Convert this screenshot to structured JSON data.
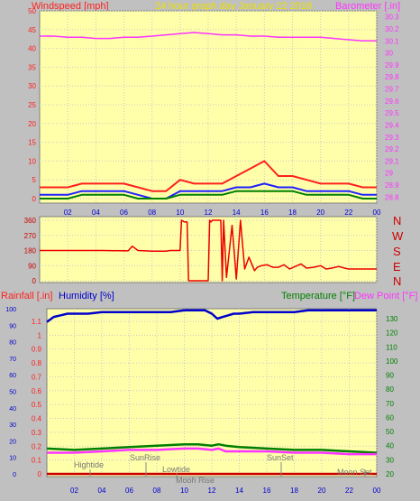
{
  "header": {
    "windspeed_label": "Windspeed [mph]",
    "title": "24 hour graph day   January 22 2018",
    "barometer_label": "Barometer [.in]"
  },
  "direction_letters": [
    "N",
    "W",
    "S",
    "E",
    "N"
  ],
  "bottom_header": {
    "rainfall_label": "Rainfall [.in]",
    "humidity_label": "Humidity [%]",
    "temperature_label": "Temperature [°F]",
    "dewpoint_label": "Dew Point [°F]"
  },
  "events": {
    "hightide": "Hightide",
    "sunrise": "SunRise",
    "lowtide": "Lowtide",
    "moonrise": "Moon Rise",
    "sunset": "SunSet",
    "moonset": "Moon Set"
  },
  "colors": {
    "plot_bg": "#ffffaa",
    "panel_bg": "#c0c0c0",
    "wind_gust": "#ff2020",
    "wind_avg": "#2020ff",
    "wind_min": "#008000",
    "barometer": "#ff33ff",
    "direction": "#ee0000",
    "humidity": "#0000cc",
    "temperature": "#008000",
    "dewpoint": "#ff33ff",
    "rainfall": "#cc0000",
    "grid": "#c8c8c8"
  },
  "chart_data": [
    {
      "type": "line",
      "title": "24 hour graph day   January 22 2018",
      "x_ticks": [
        "02",
        "04",
        "06",
        "08",
        "10",
        "12",
        "14",
        "16",
        "18",
        "20",
        "22",
        "00"
      ],
      "xlim": [
        0,
        24
      ],
      "y_left": {
        "label": "Windspeed [mph]",
        "ticks": [
          0,
          5,
          10,
          15,
          20,
          25,
          30,
          35,
          40,
          45,
          50
        ],
        "ylim": [
          0,
          50
        ]
      },
      "y_right": {
        "label": "Barometer [.in]",
        "ticks": [
          28.8,
          28.9,
          29.0,
          29.1,
          29.2,
          29.3,
          29.4,
          29.5,
          29.6,
          29.7,
          29.8,
          29.9,
          30.0,
          30.1,
          30.2,
          30.3
        ],
        "tick_labels": [
          "28.8",
          "28.9",
          "29",
          "29.1",
          "29.2",
          "29.3",
          "29.4",
          "29.5",
          "29.6",
          "29.7",
          "29.8",
          "29.9",
          "30",
          "30.1",
          "30.2",
          "30.3"
        ],
        "ylim": [
          28.75,
          30.35
        ]
      },
      "series": [
        {
          "axis": "right",
          "x": [
            0,
            1,
            2,
            3,
            4,
            5,
            6,
            7,
            8,
            9,
            10,
            11,
            12,
            13,
            14,
            15,
            16,
            17,
            18,
            19,
            20,
            21,
            22,
            23,
            24
          ],
          "y": [
            30.14,
            30.14,
            30.13,
            30.13,
            30.12,
            30.12,
            30.13,
            30.13,
            30.14,
            30.15,
            30.16,
            30.17,
            30.16,
            30.15,
            30.15,
            30.14,
            30.14,
            30.13,
            30.13,
            30.13,
            30.13,
            30.12,
            30.11,
            30.1,
            30.1
          ]
        },
        {
          "axis": "left",
          "x": [
            0,
            1,
            2,
            3,
            4,
            5,
            6,
            7,
            8,
            9,
            10,
            11,
            12,
            13,
            14,
            15,
            16,
            17,
            18,
            19,
            20,
            21,
            22,
            23,
            24
          ],
          "y": [
            3,
            3,
            3,
            4,
            4,
            4,
            4,
            3,
            2,
            2,
            5,
            4,
            4,
            4,
            6,
            8,
            10,
            6,
            6,
            5,
            4,
            4,
            4,
            3,
            3
          ]
        },
        {
          "axis": "left",
          "x": [
            0,
            1,
            2,
            3,
            4,
            5,
            6,
            7,
            8,
            9,
            10,
            11,
            12,
            13,
            14,
            15,
            16,
            17,
            18,
            19,
            20,
            21,
            22,
            23,
            24
          ],
          "y": [
            1,
            1,
            1,
            2,
            2,
            2,
            2,
            1,
            0,
            0,
            2,
            2,
            2,
            2,
            3,
            3,
            4,
            3,
            3,
            2,
            2,
            2,
            2,
            1,
            1
          ]
        },
        {
          "axis": "left",
          "x": [
            0,
            1,
            2,
            3,
            4,
            5,
            6,
            7,
            8,
            9,
            10,
            11,
            12,
            13,
            14,
            15,
            16,
            17,
            18,
            19,
            20,
            21,
            22,
            23,
            24
          ],
          "y": [
            0,
            0,
            0,
            1,
            1,
            1,
            1,
            0,
            0,
            0,
            1,
            1,
            1,
            1,
            2,
            2,
            2,
            2,
            2,
            1,
            1,
            1,
            1,
            0,
            0
          ]
        }
      ]
    },
    {
      "type": "line",
      "y_ticks": [
        0,
        90,
        180,
        270,
        360
      ],
      "ylim": [
        0,
        360
      ],
      "xlim": [
        0,
        24
      ],
      "series": [
        {
          "x": [
            0,
            4.5,
            6.3,
            6.6,
            7,
            7.5,
            8,
            9,
            9.3,
            9.6,
            10,
            10.1,
            10.3,
            10.5,
            10.6,
            11,
            11.7,
            12,
            12.1,
            12.2,
            12.3,
            12.9,
            13,
            13.1,
            13.3,
            13.7,
            14,
            14.3,
            14.6,
            14.9,
            15.3,
            15.5,
            15.8,
            16.2,
            16.6,
            17,
            17.4,
            17.8,
            18.2,
            18.6,
            19,
            19.5,
            20,
            20.4,
            20.8,
            21.3,
            21.7,
            22,
            22.5,
            23,
            24
          ],
          "y": [
            180,
            180,
            178,
            205,
            180,
            178,
            176,
            176,
            180,
            180,
            180,
            360,
            350,
            350,
            0,
            0,
            0,
            0,
            360,
            350,
            360,
            360,
            0,
            360,
            20,
            330,
            10,
            360,
            70,
            140,
            60,
            80,
            90,
            95,
            80,
            80,
            95,
            70,
            85,
            100,
            75,
            80,
            90,
            70,
            75,
            85,
            75,
            70,
            70,
            70,
            70
          ]
        }
      ]
    },
    {
      "type": "line",
      "xlim": [
        0,
        24
      ],
      "x_ticks": [
        "02",
        "04",
        "06",
        "08",
        "10",
        "12",
        "14",
        "16",
        "18",
        "20",
        "22",
        "00"
      ],
      "y_left_outer": {
        "label": "Rainfall [.in]",
        "ticks": [
          0,
          10,
          20,
          30,
          40,
          50,
          60,
          70,
          80,
          90,
          100
        ]
      },
      "y_left_inner": {
        "label": "Humidity [%]",
        "ticks": [
          0,
          0.1,
          0.2,
          0.3,
          0.4,
          0.5,
          0.6,
          0.7,
          0.8,
          0.9,
          1.0,
          1.1
        ],
        "tick_labels": [
          "0",
          "0.1",
          "0.2",
          "0.3",
          "0.4",
          "0.5",
          "0.6",
          "0.7",
          "0.8",
          "0.9",
          "1",
          "1.1"
        ]
      },
      "y_right": {
        "label": "Temperature [°F]",
        "ticks": [
          20,
          30,
          40,
          50,
          60,
          70,
          80,
          90,
          100,
          110,
          120,
          130
        ]
      },
      "series": [
        {
          "name": "Humidity [%]",
          "x": [
            0,
            0.5,
            1,
            1.5,
            2,
            3,
            4,
            5,
            6,
            7,
            8,
            9,
            10,
            11,
            11.5,
            12,
            12.4,
            12.8,
            13.2,
            13.6,
            14,
            15,
            16,
            17,
            18,
            19,
            20,
            21,
            22,
            23,
            24
          ],
          "y": [
            92,
            95,
            96,
            97,
            97,
            97,
            98,
            98,
            98,
            98,
            98,
            98,
            99,
            99,
            99,
            97,
            94,
            95,
            96,
            97,
            97,
            98,
            98,
            98,
            98,
            99,
            99,
            99,
            99,
            99,
            99
          ]
        },
        {
          "name": "Temperature [°F]",
          "x": [
            0,
            2,
            4,
            6,
            8,
            10,
            11,
            12,
            12.5,
            13,
            14,
            16,
            18,
            20,
            22,
            24
          ],
          "y": [
            38,
            37,
            38,
            39,
            40,
            41,
            41,
            40,
            41,
            40,
            39,
            38,
            37,
            37,
            36,
            35
          ]
        },
        {
          "name": "Dew Point [°F]",
          "x": [
            0,
            2,
            4,
            6,
            8,
            10,
            11,
            12,
            12.5,
            13,
            14,
            16,
            18,
            20,
            22,
            24
          ],
          "y": [
            35,
            35,
            36,
            37,
            37,
            38,
            38,
            37,
            38,
            36,
            36,
            36,
            35,
            35,
            34,
            34
          ]
        },
        {
          "name": "Rainfall [.in]",
          "x": [
            0,
            24
          ],
          "y": [
            0.0,
            0.0
          ]
        }
      ]
    }
  ]
}
